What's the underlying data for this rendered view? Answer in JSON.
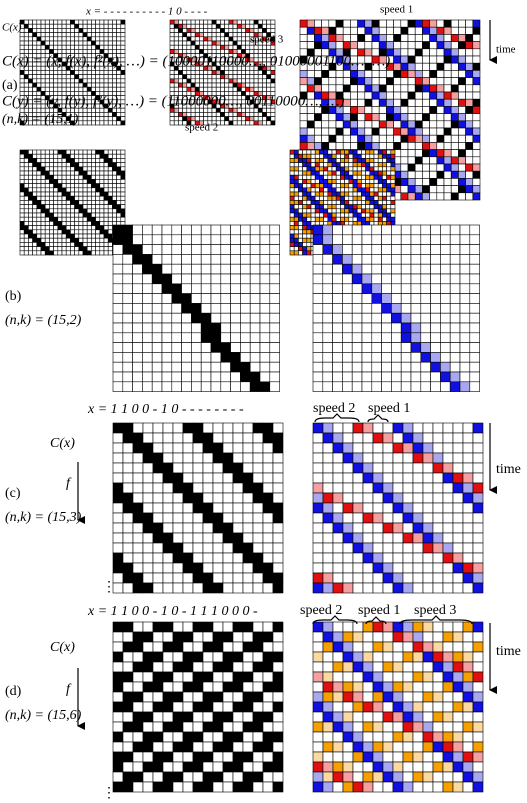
{
  "panel_a": {
    "label": "(a)",
    "params": "(n,k) = (15,1)",
    "x": "x = - - - - - - - - - - 1 0 - - - -",
    "row_label": "C(x)",
    "formula_x": "C(x) = (x, f(x), f²(x), …) = (10000110000…, 01000001100…, …)",
    "formula_y": "C(y) = (y, f(y), f²(y), …) = (11000000…, 00110000…, …)",
    "speed_1": "speed 1",
    "speed_2": "speed 2",
    "speed_3": "speed 3",
    "time": "time"
  },
  "panel_b": {
    "label": "(b)",
    "params": "(n,k) = (15,2)"
  },
  "panel_c": {
    "label": "(c)",
    "params": "(n,k) = (15,3)",
    "x": "x = 1 1 0 0 - 1 0 - - - - - - - -",
    "row_label": "C(x)",
    "map": "f",
    "speed_2": "speed 2",
    "speed_1": "speed 1",
    "time": "time",
    "more": "⋮"
  },
  "panel_d": {
    "label": "(d)",
    "params": "(n,k) = (15,6)",
    "x": "x = 1 1 0 0 - 1 0 - 1 1 1 0 0 0 -",
    "row_label": "C(x)",
    "map": "f",
    "speed_2": "speed 2",
    "speed_1": "speed 1",
    "speed_3": "speed 3",
    "time": "time",
    "more": "⋮"
  }
}
